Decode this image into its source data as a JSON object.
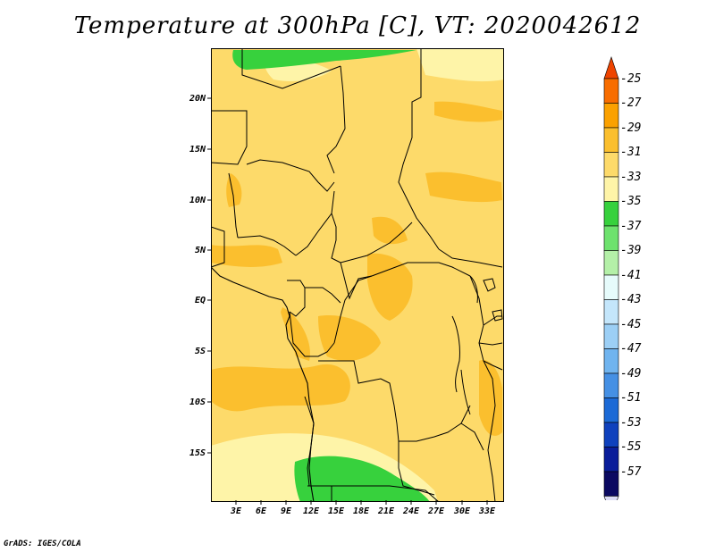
{
  "title": "Temperature at 300hPa [C], VT: 2020042612",
  "footer": "GrADS: IGES/COLA",
  "y_axis": {
    "ticks": [
      "20N",
      "15N",
      "10N",
      "5N",
      "EQ",
      "5S",
      "10S",
      "15S"
    ]
  },
  "x_axis": {
    "ticks": [
      "3E",
      "6E",
      "9E",
      "12E",
      "15E",
      "18E",
      "21E",
      "24E",
      "27E",
      "30E",
      "33E"
    ]
  },
  "colorbar": {
    "labels": [
      "-25",
      "-27",
      "-29",
      "-31",
      "-33",
      "-35",
      "-37",
      "-39",
      "-41",
      "-43",
      "-45",
      "-47",
      "-49",
      "-51",
      "-53",
      "-55",
      "-57"
    ],
    "colors": [
      "#ee4400",
      "#f86d00",
      "#fba100",
      "#fbbf2e",
      "#fdda6a",
      "#fef4a8",
      "#37d13d",
      "#6ee26e",
      "#b4f0a8",
      "#e6fbfb",
      "#c4e6fb",
      "#9ccff5",
      "#70b4ef",
      "#4590e4",
      "#1c6ad6",
      "#0f41bd",
      "#0a1d9a",
      "#0b0961",
      "#dcdcf5"
    ]
  },
  "map_colors": {
    "band_m31": "#fdda6a",
    "band_m29": "#fbbf2e",
    "band_m33": "#fef4a8",
    "band_m35": "#37d13d",
    "border": "#000000"
  }
}
